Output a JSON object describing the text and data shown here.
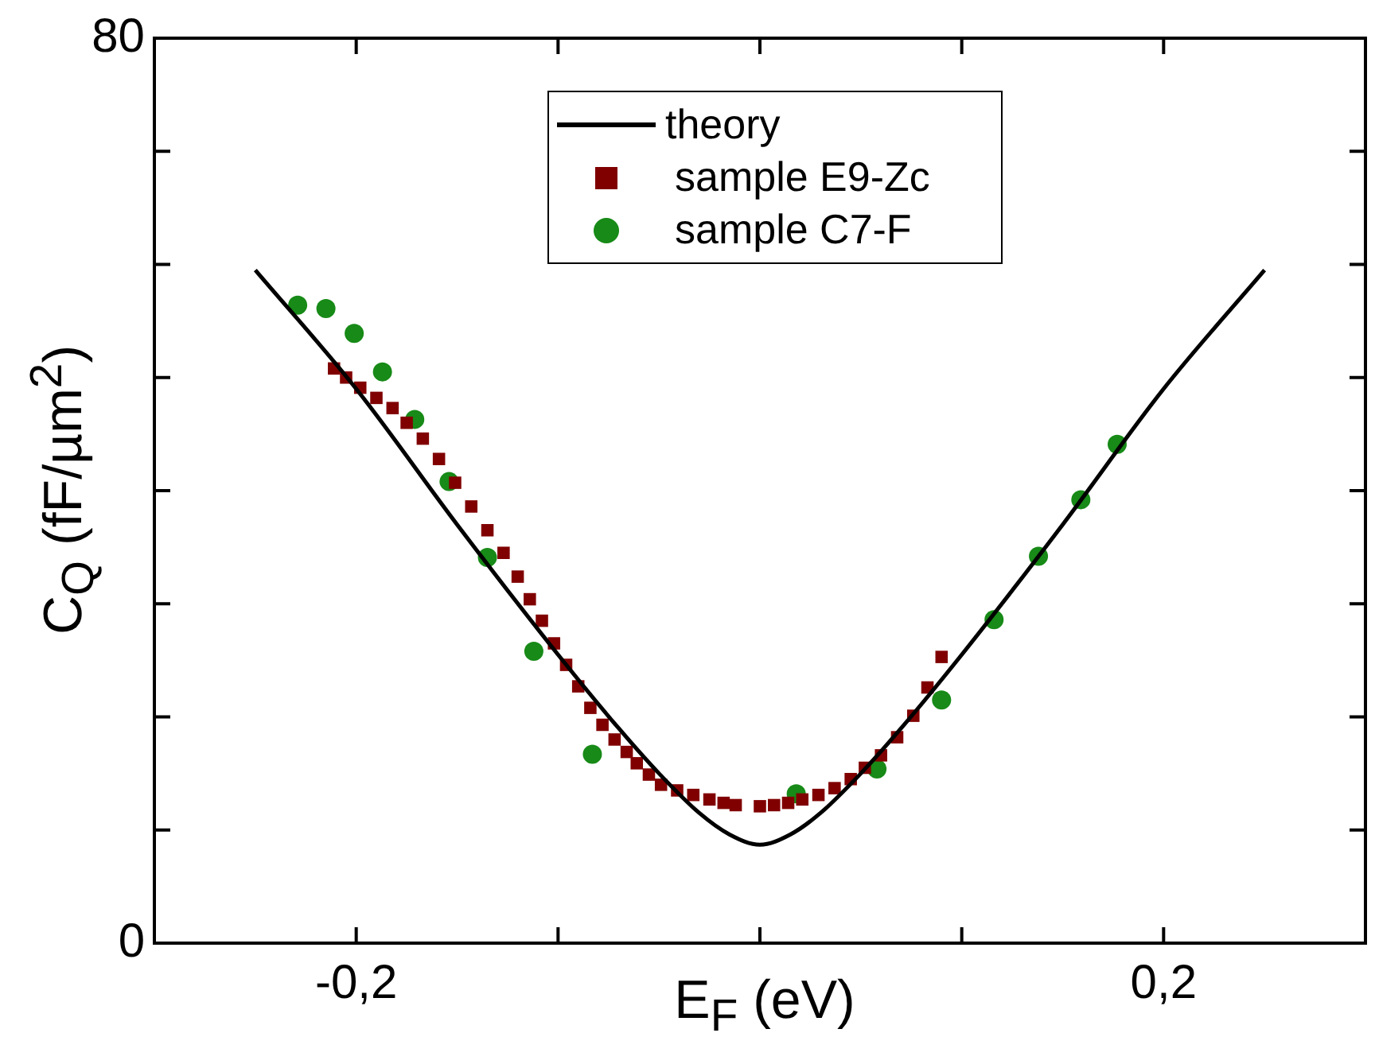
{
  "chart_data": {
    "type": "scatter",
    "xlabel": "E$_{F}$ (eV)",
    "ylabel": "C$_{Q}$ (fF/µm$^{2}$)",
    "xlim": [
      -0.3,
      0.3
    ],
    "ylim": [
      0,
      80
    ],
    "xticks": [
      {
        "value": -0.2,
        "label": "-0,2"
      },
      {
        "value": -0.1,
        "label": null
      },
      {
        "value": 0,
        "label": null
      },
      {
        "value": 0.1,
        "label": null
      },
      {
        "value": 0.2,
        "label": "0,2"
      }
    ],
    "yticks": [
      0,
      {
        "value": 10,
        "label": null
      },
      {
        "value": 20,
        "label": null
      },
      {
        "value": 30,
        "label": null
      },
      {
        "value": 40,
        "label": null
      },
      {
        "value": 50,
        "label": null
      },
      {
        "value": 60,
        "label": null
      },
      {
        "value": 70,
        "label": null
      },
      80
    ],
    "grid": false,
    "legend": "top",
    "series": [
      {
        "name": "theory",
        "type": "line",
        "marker": "none",
        "color": "#000000",
        "x": [
          -0.25,
          -0.2,
          -0.15,
          -0.1,
          -0.07,
          -0.05,
          -0.03,
          -0.015,
          0,
          0.015,
          0.03,
          0.05,
          0.07,
          0.1,
          0.15,
          0.2,
          0.25
        ],
        "values": [
          59.5,
          49,
          37,
          25.5,
          19,
          15,
          11.5,
          9.6,
          8.7,
          9.6,
          11.5,
          15,
          19,
          25.5,
          37,
          49,
          59.5
        ]
      },
      {
        "name": "sample E9-Zc",
        "type": "scatter",
        "marker": "square",
        "color": "#800000",
        "x": [
          -0.211,
          -0.205,
          -0.198,
          -0.19,
          -0.182,
          -0.175,
          -0.167,
          -0.159,
          -0.151,
          -0.143,
          -0.135,
          -0.127,
          -0.12,
          -0.114,
          -0.108,
          -0.102,
          -0.096,
          -0.09,
          -0.084,
          -0.078,
          -0.072,
          -0.066,
          -0.061,
          -0.055,
          -0.049,
          -0.041,
          -0.033,
          -0.025,
          -0.018,
          -0.012,
          0.0,
          0.007,
          0.014,
          0.021,
          0.029,
          0.037,
          0.045,
          0.052,
          0.06,
          0.068,
          0.076,
          0.083,
          0.09
        ],
        "values": [
          50.8,
          50,
          49.1,
          48.2,
          47.3,
          46,
          44.6,
          42.8,
          40.7,
          38.6,
          36.5,
          34.5,
          32.4,
          30.4,
          28.5,
          26.5,
          24.6,
          22.7,
          20.8,
          19.3,
          18,
          16.9,
          15.9,
          14.9,
          14,
          13.5,
          13.1,
          12.7,
          12.4,
          12.2,
          12.1,
          12.2,
          12.4,
          12.7,
          13.1,
          13.7,
          14.5,
          15.5,
          16.6,
          18.2,
          20.1,
          22.6,
          25.3
        ]
      },
      {
        "name": "sample C7-F",
        "type": "scatter",
        "marker": "circle",
        "color": "#178a17",
        "x": [
          -0.229,
          -0.215,
          -0.201,
          -0.187,
          -0.171,
          -0.154,
          -0.135,
          -0.112,
          -0.083,
          0.018,
          0.058,
          0.09,
          0.116,
          0.138,
          0.159,
          0.177
        ],
        "values": [
          56.4,
          56.1,
          53.9,
          50.5,
          46.3,
          40.8,
          34.1,
          25.8,
          16.7,
          13.2,
          15.4,
          21.5,
          28.6,
          34.2,
          39.2,
          44.1
        ]
      }
    ]
  }
}
